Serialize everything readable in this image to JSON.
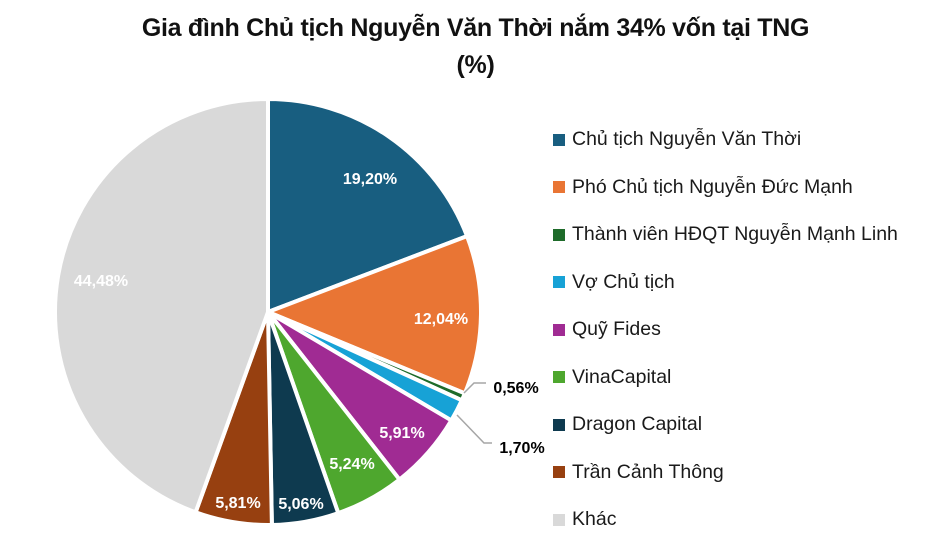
{
  "title": {
    "line1": "Gia đình Chủ tịch Nguyễn Văn Thời nắm 34% vốn tại TNG",
    "line2": "(%)"
  },
  "legend": {
    "items": [
      {
        "label": "Chủ tịch Nguyễn Văn Thời",
        "color": "#185E80"
      },
      {
        "label": "Phó Chủ tịch Nguyễn Đức Mạnh",
        "color": "#E97534"
      },
      {
        "label": "Thành viên HĐQT Nguyễn Mạnh Linh",
        "color": "#1E6B2A"
      },
      {
        "label": "Vợ Chủ tịch",
        "color": "#17A2D6"
      },
      {
        "label": "Quỹ Fides",
        "color": "#A02B93"
      },
      {
        "label": "VinaCapital",
        "color": "#4EA72E"
      },
      {
        "label": "Dragon Capital",
        "color": "#0E3A4F"
      },
      {
        "label": "Trần Cảnh Thông",
        "color": "#974010"
      },
      {
        "label": "Khác",
        "color": "#D9D9D9"
      }
    ]
  },
  "chart_data": {
    "type": "pie",
    "title": "Gia đình Chủ tịch Nguyễn Văn Thời nắm 34% vốn tại TNG (%)",
    "categories": [
      "Chủ tịch Nguyễn Văn Thời",
      "Phó Chủ tịch Nguyễn Đức Mạnh",
      "Thành viên HĐQT Nguyễn Mạnh Linh",
      "Vợ Chủ tịch",
      "Quỹ Fides",
      "VinaCapital",
      "Dragon Capital",
      "Trần Cảnh Thông",
      "Khác"
    ],
    "values": [
      19.2,
      12.04,
      0.56,
      1.7,
      5.91,
      5.24,
      5.06,
      5.81,
      44.48
    ],
    "data_labels": [
      "19,20%",
      "12,04%",
      "0,56%",
      "1,70%",
      "5,91%",
      "5,24%",
      "5,06%",
      "5,81%",
      "44,48%"
    ],
    "colors": [
      "#185E80",
      "#E97534",
      "#1E6B2A",
      "#17A2D6",
      "#A02B93",
      "#4EA72E",
      "#0E3A4F",
      "#974010",
      "#D9D9D9"
    ],
    "legend_position": "right",
    "start_angle_deg": 0,
    "direction": "clockwise"
  }
}
